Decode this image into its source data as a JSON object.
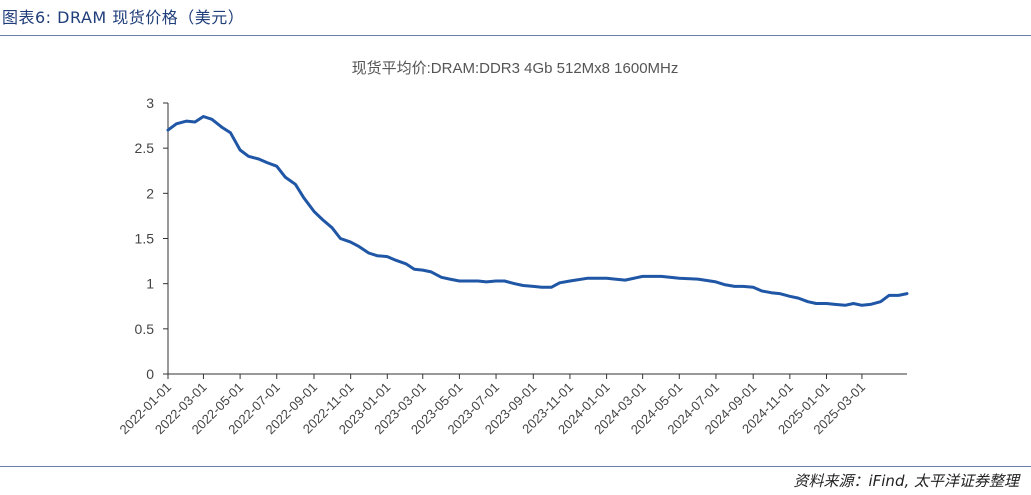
{
  "figure": {
    "title": "图表6: DRAM 现货价格（美元）",
    "source": "资料来源：iFind, 太平洋证券整理"
  },
  "colors": {
    "line": "#1f56a5",
    "axis": "#333333",
    "accent": "#1f3e7a"
  },
  "chart_data": {
    "type": "line",
    "title": "现货平均价:DRAM:DDR3 4Gb 512Mx8 1600MHz",
    "xlabel": "",
    "ylabel": "",
    "ylim": [
      0,
      3
    ],
    "yticks": [
      0,
      0.5,
      1,
      1.5,
      2,
      2.5,
      3
    ],
    "xlim": [
      "2022-01-01",
      "2025-05-15"
    ],
    "xticks": [
      "2022-01-01",
      "2022-03-01",
      "2022-05-01",
      "2022-07-01",
      "2022-09-01",
      "2022-11-01",
      "2023-01-01",
      "2023-03-01",
      "2023-05-01",
      "2023-07-01",
      "2023-09-01",
      "2023-11-01",
      "2024-01-01",
      "2024-03-01",
      "2024-05-01",
      "2024-07-01",
      "2024-09-01",
      "2024-11-01",
      "2025-01-01",
      "2025-03-01"
    ],
    "grid": false,
    "series": [
      {
        "name": "",
        "x": [
          "2022-01-01",
          "2022-01-15",
          "2022-02-01",
          "2022-02-15",
          "2022-03-01",
          "2022-03-15",
          "2022-04-01",
          "2022-04-15",
          "2022-05-01",
          "2022-05-15",
          "2022-06-01",
          "2022-06-15",
          "2022-07-01",
          "2022-07-15",
          "2022-08-01",
          "2022-08-15",
          "2022-09-01",
          "2022-09-15",
          "2022-10-01",
          "2022-10-15",
          "2022-11-01",
          "2022-11-15",
          "2022-12-01",
          "2022-12-15",
          "2023-01-01",
          "2023-01-15",
          "2023-02-01",
          "2023-02-15",
          "2023-03-01",
          "2023-03-15",
          "2023-04-01",
          "2023-04-15",
          "2023-05-01",
          "2023-06-01",
          "2023-06-15",
          "2023-07-01",
          "2023-07-15",
          "2023-08-01",
          "2023-08-15",
          "2023-09-01",
          "2023-09-15",
          "2023-10-01",
          "2023-10-15",
          "2023-11-01",
          "2023-12-01",
          "2024-01-01",
          "2024-01-15",
          "2024-02-01",
          "2024-03-01",
          "2024-04-01",
          "2024-04-15",
          "2024-05-01",
          "2024-06-01",
          "2024-07-01",
          "2024-07-15",
          "2024-08-01",
          "2024-08-15",
          "2024-09-01",
          "2024-09-15",
          "2024-10-01",
          "2024-10-15",
          "2024-11-01",
          "2024-11-15",
          "2024-12-01",
          "2024-12-15",
          "2025-01-01",
          "2025-01-15",
          "2025-02-01",
          "2025-02-15",
          "2025-03-01",
          "2025-03-15",
          "2025-04-01",
          "2025-04-15",
          "2025-05-01",
          "2025-05-15"
        ],
        "values": [
          2.7,
          2.77,
          2.8,
          2.79,
          2.85,
          2.82,
          2.73,
          2.67,
          2.48,
          2.41,
          2.38,
          2.34,
          2.3,
          2.18,
          2.1,
          1.95,
          1.8,
          1.71,
          1.62,
          1.5,
          1.46,
          1.41,
          1.34,
          1.31,
          1.3,
          1.26,
          1.22,
          1.16,
          1.15,
          1.13,
          1.07,
          1.05,
          1.03,
          1.03,
          1.02,
          1.03,
          1.03,
          1.0,
          0.98,
          0.97,
          0.96,
          0.96,
          1.01,
          1.03,
          1.06,
          1.06,
          1.05,
          1.04,
          1.08,
          1.08,
          1.07,
          1.06,
          1.05,
          1.02,
          0.99,
          0.97,
          0.97,
          0.96,
          0.92,
          0.9,
          0.89,
          0.86,
          0.84,
          0.8,
          0.78,
          0.78,
          0.77,
          0.76,
          0.78,
          0.76,
          0.77,
          0.8,
          0.87,
          0.87,
          0.89
        ]
      }
    ]
  }
}
